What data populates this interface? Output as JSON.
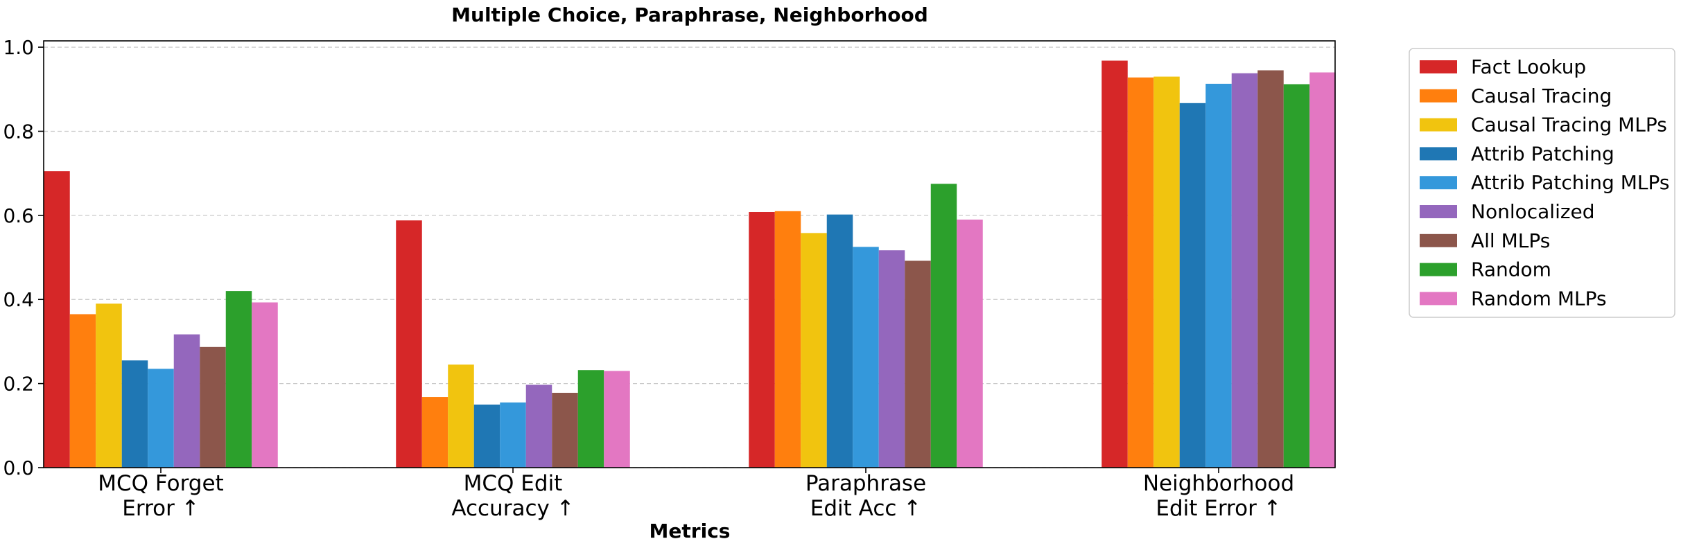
{
  "chart_data": {
    "type": "bar",
    "title": "Multiple Choice, Paraphrase, Neighborhood",
    "xlabel": "Metrics",
    "ylabel": "",
    "ylim": [
      0,
      1.0
    ],
    "yticks": [
      "0.0",
      "0.2",
      "0.4",
      "0.6",
      "0.8",
      "1.0"
    ],
    "grid": true,
    "legend_position": "outside-right",
    "categories": [
      [
        "MCQ Forget",
        "Error ↑"
      ],
      [
        "MCQ Edit",
        "Accuracy ↑"
      ],
      [
        "Paraphrase",
        "Edit Acc ↑"
      ],
      [
        "Neighborhood",
        "Edit Error ↑"
      ]
    ],
    "series": [
      {
        "name": "Fact Lookup",
        "color": "#d62728",
        "values": [
          0.705,
          0.588,
          0.608,
          0.968
        ]
      },
      {
        "name": "Causal Tracing",
        "color": "#ff7f0e",
        "values": [
          0.365,
          0.168,
          0.61,
          0.928
        ]
      },
      {
        "name": "Causal Tracing MLPs",
        "color": "#f1c40f",
        "values": [
          0.39,
          0.245,
          0.558,
          0.93
        ]
      },
      {
        "name": "Attrib Patching",
        "color": "#1f77b4",
        "values": [
          0.255,
          0.15,
          0.602,
          0.867
        ]
      },
      {
        "name": "Attrib Patching MLPs",
        "color": "#3498db",
        "values": [
          0.235,
          0.155,
          0.525,
          0.913
        ]
      },
      {
        "name": "Nonlocalized",
        "color": "#9467bd",
        "values": [
          0.317,
          0.197,
          0.517,
          0.938
        ]
      },
      {
        "name": "All MLPs",
        "color": "#8c564b",
        "values": [
          0.287,
          0.178,
          0.492,
          0.945
        ]
      },
      {
        "name": "Random",
        "color": "#2ca02c",
        "values": [
          0.42,
          0.232,
          0.675,
          0.912
        ]
      },
      {
        "name": "Random MLPs",
        "color": "#e377c2",
        "values": [
          0.393,
          0.23,
          0.59,
          0.94
        ]
      }
    ]
  }
}
